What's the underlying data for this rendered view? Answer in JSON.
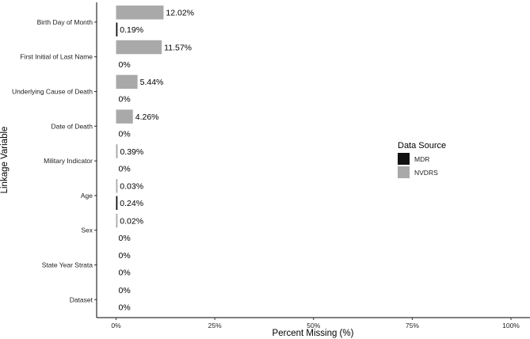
{
  "chart_data": {
    "type": "bar",
    "orientation": "horizontal",
    "xlabel": "Percent Missing (%)",
    "ylabel": "Linkage Variable",
    "xlim": [
      0,
      100
    ],
    "x_ticks": [
      "0%",
      "25%",
      "50%",
      "75%",
      "100%"
    ],
    "x_tick_values": [
      0,
      25,
      50,
      75,
      100
    ],
    "grid": false,
    "categories": [
      "Birth Day of Month",
      "First Initial of Last Name",
      "Underlying Cause of Death",
      "Date of Death",
      "Military Indicator",
      "Age",
      "Sex",
      "State Year Strata",
      "Dataset"
    ],
    "series": [
      {
        "name": "NVDRS",
        "color": "#a9a9a9",
        "values": [
          12.02,
          11.57,
          5.44,
          4.26,
          0.39,
          0.03,
          0.02,
          0,
          0
        ],
        "labels": [
          "12.02%",
          "11.57%",
          "5.44%",
          "4.26%",
          "0.39%",
          "0.03%",
          "0.02%",
          "0%",
          "0%"
        ]
      },
      {
        "name": "MDR",
        "color": "#111111",
        "values": [
          0.19,
          0,
          0,
          0,
          0,
          0.24,
          0,
          0,
          0
        ],
        "labels": [
          "0.19%",
          "0%",
          "0%",
          "0%",
          "0%",
          "0.24%",
          "0%",
          "0%",
          "0%"
        ]
      }
    ],
    "legend": {
      "title": "Data Source",
      "position": "right",
      "entries": [
        "MDR",
        "NVDRS"
      ]
    }
  }
}
